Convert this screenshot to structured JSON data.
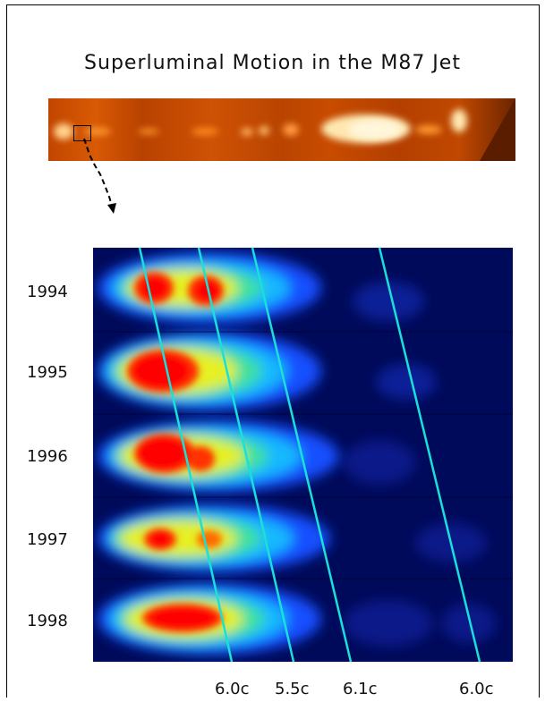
{
  "title": "Superluminal Motion in the M87 Jet",
  "years": [
    "1994",
    "1995",
    "1996",
    "1997",
    "1998"
  ],
  "speeds": [
    "6.0c",
    "5.5c",
    "6.1c",
    "6.0c"
  ],
  "colors": {
    "jet_base": "#c24500",
    "jet_hot": "#ffe8b0",
    "heat_bg": "#000a5a",
    "track_line": "#19e0d8"
  }
}
